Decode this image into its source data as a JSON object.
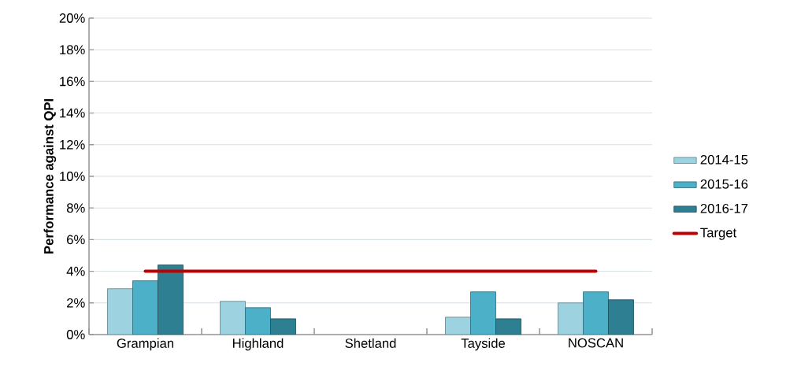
{
  "chart_data": {
    "type": "bar",
    "ylabel": "Performance against QPI",
    "categories": [
      "Grampian",
      "Highland",
      "Shetland",
      "Tayside",
      "NOSCAN"
    ],
    "series": [
      {
        "name": "2014-15",
        "color": "#9dd3e0",
        "values": [
          2.9,
          2.1,
          null,
          1.1,
          2.0
        ]
      },
      {
        "name": "2015-16",
        "color": "#4bb0c8",
        "values": [
          3.4,
          1.7,
          null,
          2.7,
          2.7
        ]
      },
      {
        "name": "2016-17",
        "color": "#2e7f92",
        "values": [
          4.4,
          1.0,
          null,
          1.0,
          2.2
        ]
      },
      {
        "name": "Target",
        "type": "line",
        "color": "#c00000",
        "values": [
          4,
          4,
          4,
          4,
          4
        ]
      }
    ],
    "ylim": [
      0,
      20
    ],
    "yticks": [
      {
        "value": 0,
        "label": "0%"
      },
      {
        "value": 2,
        "label": "2%"
      },
      {
        "value": 4,
        "label": "4%"
      },
      {
        "value": 6,
        "label": "6%"
      },
      {
        "value": 8,
        "label": "8%"
      },
      {
        "value": 10,
        "label": "10%"
      },
      {
        "value": 12,
        "label": "12%"
      },
      {
        "value": 14,
        "label": "14%"
      },
      {
        "value": 16,
        "label": "16%"
      },
      {
        "value": 18,
        "label": "18%"
      },
      {
        "value": 20,
        "label": "20%"
      }
    ],
    "grid": "y",
    "legend": "right"
  }
}
